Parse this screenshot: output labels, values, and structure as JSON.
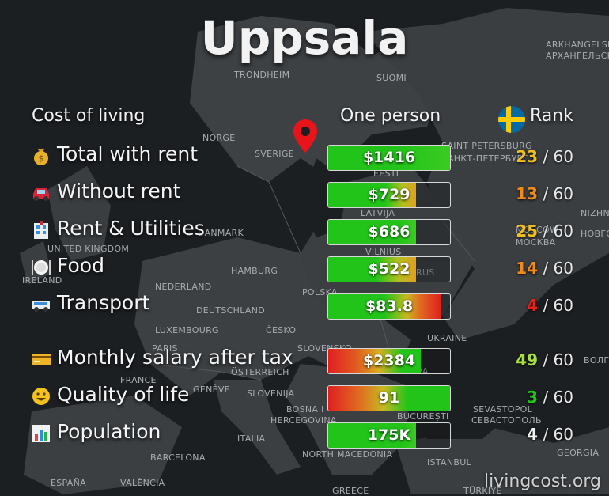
{
  "page": {
    "title": "Uppsala",
    "watermark": "livingcost.org"
  },
  "headers": {
    "category": "Cost of living",
    "value": "One person",
    "rank": "Rank"
  },
  "colors": {
    "good": "#22c41a",
    "mid": "#e0a020",
    "bad": "#e02020",
    "panel": "#1c1f22"
  },
  "map_labels": [
    "TRONDHEIM",
    "SUOMI",
    "ARKHANGELSK",
    "АРХАНГЕЛЬСК",
    "NORGE",
    "SVERIGE",
    "SAINT PETERSBURG",
    "САНКТ-ПЕТЕРБУРГ",
    "EESTI",
    "LATVIJA",
    "NIZHNY",
    "НОВГО",
    "DANMARK",
    "MOSCOW",
    "МОСКВА",
    "UNITED KINGDOM",
    "VILNIUS",
    "IRELAND",
    "HAMBURG",
    "RUS",
    "NEDERLAND",
    "POLSKA",
    "DEUTSCHLAND",
    "LUXEMBOURG",
    "ČESKO",
    "UKRAINE",
    "PARIS",
    "SLOVENSKO",
    "ÖSTERREICH",
    "MOLDOVA",
    "FRANCE",
    "GENÈVE",
    "SLOVENIJA",
    "ВОЛГ",
    "BOSNA I",
    "HERCEGOVINA",
    "SEVASTOPOL",
    "СЕВАСТОПОЛЬ",
    "BUCUREȘTI",
    "ITALIA",
    "NORTH MACEDONIA",
    "GEORGIA",
    "BARCELONA",
    "ISTANBUL",
    "ESPAÑA",
    "VALÈNCIA",
    "GREECE",
    "TÜRKIYE"
  ],
  "chart_data": {
    "type": "bar",
    "title": "Uppsala",
    "categories": [
      "Total with rent",
      "Without rent",
      "Rent & Utilities",
      "Food",
      "Transport",
      "Monthly salary after tax",
      "Quality of life",
      "Population"
    ],
    "value_labels": [
      "$1416",
      "$729",
      "$686",
      "$522",
      "$83.8",
      "$2384",
      "91",
      "175K"
    ],
    "values": [
      1416,
      729,
      686,
      522,
      83.8,
      2384,
      91,
      175000
    ],
    "ranks": [
      23,
      13,
      25,
      14,
      4,
      49,
      3,
      4
    ],
    "rank_total": "/ 60",
    "icons": [
      "money-bag-icon",
      "car-icon",
      "hotel-icon",
      "plate-icon",
      "minibus-icon",
      "credit-card-icon",
      "smiley-icon",
      "bar-chart-icon"
    ]
  }
}
